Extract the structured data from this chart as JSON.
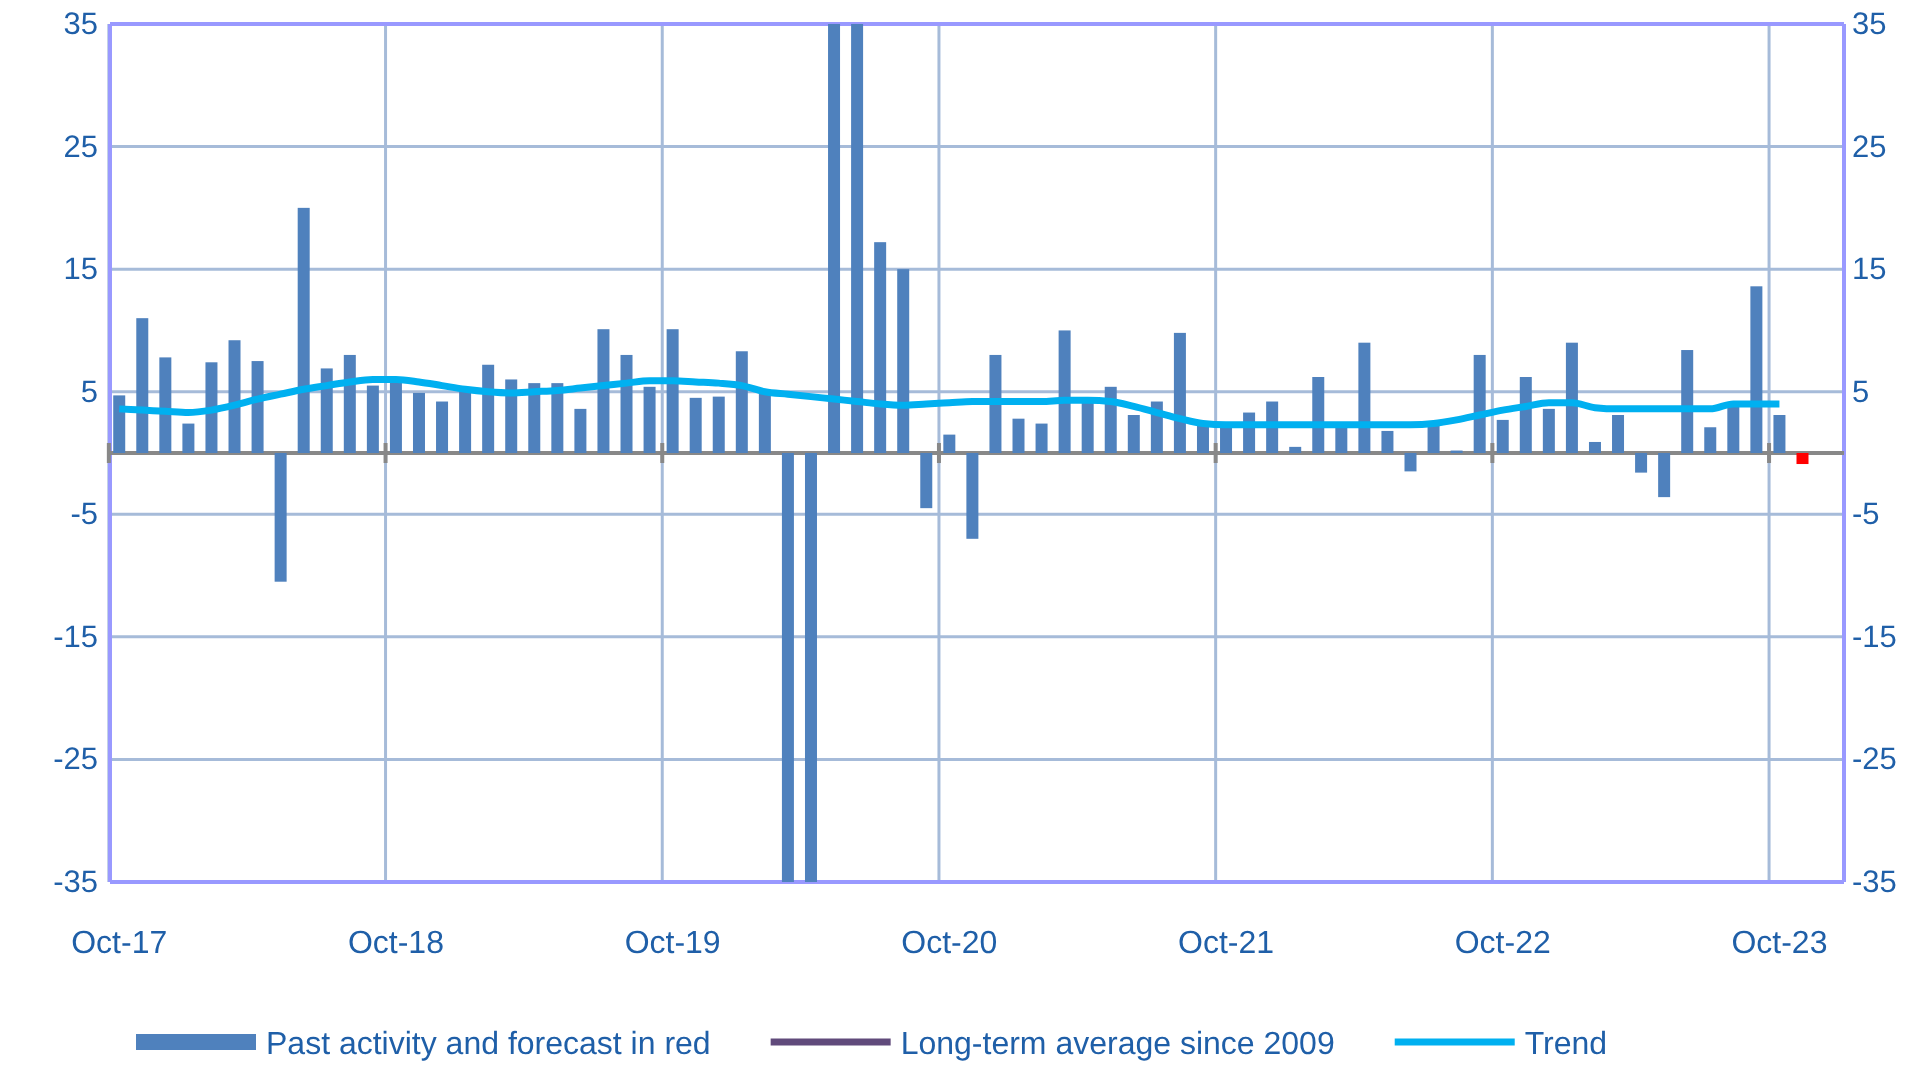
{
  "chart_data": {
    "type": "bar",
    "categories": [
      "Oct-17",
      null,
      null,
      null,
      null,
      null,
      null,
      null,
      null,
      null,
      null,
      null,
      "Oct-18",
      null,
      null,
      null,
      null,
      null,
      null,
      null,
      null,
      null,
      null,
      null,
      "Oct-19",
      null,
      null,
      null,
      null,
      null,
      null,
      null,
      null,
      null,
      null,
      null,
      "Oct-20",
      null,
      null,
      null,
      null,
      null,
      null,
      null,
      null,
      null,
      null,
      null,
      "Oct-21",
      null,
      null,
      null,
      null,
      null,
      null,
      null,
      null,
      null,
      null,
      null,
      "Oct-22",
      null,
      null,
      null,
      null,
      null,
      null,
      null,
      null,
      null,
      null,
      null,
      "Oct-23",
      null
    ],
    "series": [
      {
        "name": "Past activity and forecast in red",
        "color": "#4f81bd",
        "colors": [
          "#4f81bd",
          "#4f81bd",
          "#4f81bd",
          "#4f81bd",
          "#4f81bd",
          "#4f81bd",
          "#4f81bd",
          "#4f81bd",
          "#4f81bd",
          "#4f81bd",
          "#4f81bd",
          "#4f81bd",
          "#4f81bd",
          "#4f81bd",
          "#4f81bd",
          "#4f81bd",
          "#4f81bd",
          "#4f81bd",
          "#4f81bd",
          "#4f81bd",
          "#4f81bd",
          "#4f81bd",
          "#4f81bd",
          "#4f81bd",
          "#4f81bd",
          "#4f81bd",
          "#4f81bd",
          "#4f81bd",
          "#4f81bd",
          "#4f81bd",
          "#4f81bd",
          "#4f81bd",
          "#4f81bd",
          "#4f81bd",
          "#4f81bd",
          "#4f81bd",
          "#4f81bd",
          "#4f81bd",
          "#4f81bd",
          "#4f81bd",
          "#4f81bd",
          "#4f81bd",
          "#4f81bd",
          "#4f81bd",
          "#4f81bd",
          "#4f81bd",
          "#4f81bd",
          "#4f81bd",
          "#4f81bd",
          "#4f81bd",
          "#4f81bd",
          "#4f81bd",
          "#4f81bd",
          "#4f81bd",
          "#4f81bd",
          "#4f81bd",
          "#4f81bd",
          "#4f81bd",
          "#4f81bd",
          "#4f81bd",
          "#4f81bd",
          "#4f81bd",
          "#4f81bd",
          "#4f81bd",
          "#4f81bd",
          "#4f81bd",
          "#4f81bd",
          "#4f81bd",
          "#4f81bd",
          "#4f81bd",
          "#4f81bd",
          "#4f81bd",
          "#4f81bd",
          "#ff0000"
        ],
        "values": [
          4.7,
          11,
          7.8,
          2.4,
          7.4,
          9.2,
          7.5,
          -10.5,
          20,
          6.9,
          8,
          5.5,
          6,
          4.9,
          4.2,
          5,
          7.2,
          6,
          5.7,
          5.7,
          3.6,
          10.1,
          8,
          5.4,
          10.1,
          4.5,
          4.6,
          8.3,
          5,
          -35,
          -35,
          35,
          35,
          17.2,
          15,
          -4.5,
          1.5,
          -7,
          8,
          2.8,
          2.4,
          10,
          4.5,
          5.4,
          3.1,
          4.2,
          9.8,
          2.3,
          2.3,
          3.3,
          4.2,
          0.5,
          6.2,
          2.3,
          9,
          1.8,
          -1.5,
          2.4,
          0.2,
          8,
          2.7,
          6.2,
          3.6,
          9,
          0.9,
          3.1,
          -1.6,
          -3.6,
          8.4,
          2.1,
          3.8,
          13.6,
          3.1,
          -0.9
        ]
      },
      {
        "name": "Long-term average since 2009",
        "type": "line",
        "color": "#604a7b",
        "values": [
          null,
          null,
          null,
          null,
          null,
          null,
          null,
          null,
          null,
          null,
          null,
          null,
          null,
          null,
          null,
          null,
          null,
          null,
          null,
          null,
          null,
          null,
          null,
          null,
          null,
          null,
          null,
          null,
          null,
          null,
          null,
          null,
          null,
          null,
          null,
          null,
          null,
          null,
          null,
          null,
          null,
          null,
          null,
          null,
          null,
          null,
          null,
          null,
          null,
          null,
          null,
          null,
          null,
          null,
          null,
          null,
          null,
          null,
          null,
          null,
          null,
          null,
          null,
          null,
          null,
          null,
          null,
          null,
          null,
          null,
          null,
          null,
          null,
          null
        ]
      },
      {
        "name": "Trend",
        "type": "line",
        "color": "#00b0f0",
        "values": [
          3.6,
          3.5,
          3.4,
          3.3,
          3.5,
          3.9,
          4.4,
          4.8,
          5.2,
          5.5,
          5.8,
          6,
          6,
          5.8,
          5.5,
          5.2,
          5,
          4.9,
          5,
          5.1,
          5.3,
          5.5,
          5.7,
          5.9,
          5.9,
          5.8,
          5.7,
          5.5,
          5,
          4.8,
          4.6,
          4.4,
          4.2,
          4,
          3.9,
          4,
          4.1,
          4.2,
          4.2,
          4.2,
          4.2,
          4.3,
          4.3,
          4.2,
          3.8,
          3.3,
          2.8,
          2.4,
          2.3,
          2.3,
          2.3,
          2.3,
          2.3,
          2.3,
          2.3,
          2.3,
          2.3,
          2.4,
          2.7,
          3.1,
          3.5,
          3.8,
          4.1,
          4.1,
          3.7,
          3.6,
          3.6,
          3.6,
          3.6,
          3.6,
          4,
          4,
          4,
          null
        ]
      }
    ],
    "ylim": [
      -35,
      35
    ],
    "yticks": [
      -35,
      -25,
      -15,
      -5,
      5,
      15,
      25,
      35
    ],
    "y2lim": [
      -35,
      35
    ],
    "y2ticks": [
      -35,
      -25,
      -15,
      -5,
      5,
      15,
      25,
      35
    ],
    "grid": true,
    "legend": "bottom",
    "marker": "none",
    "line_style": "solid"
  }
}
